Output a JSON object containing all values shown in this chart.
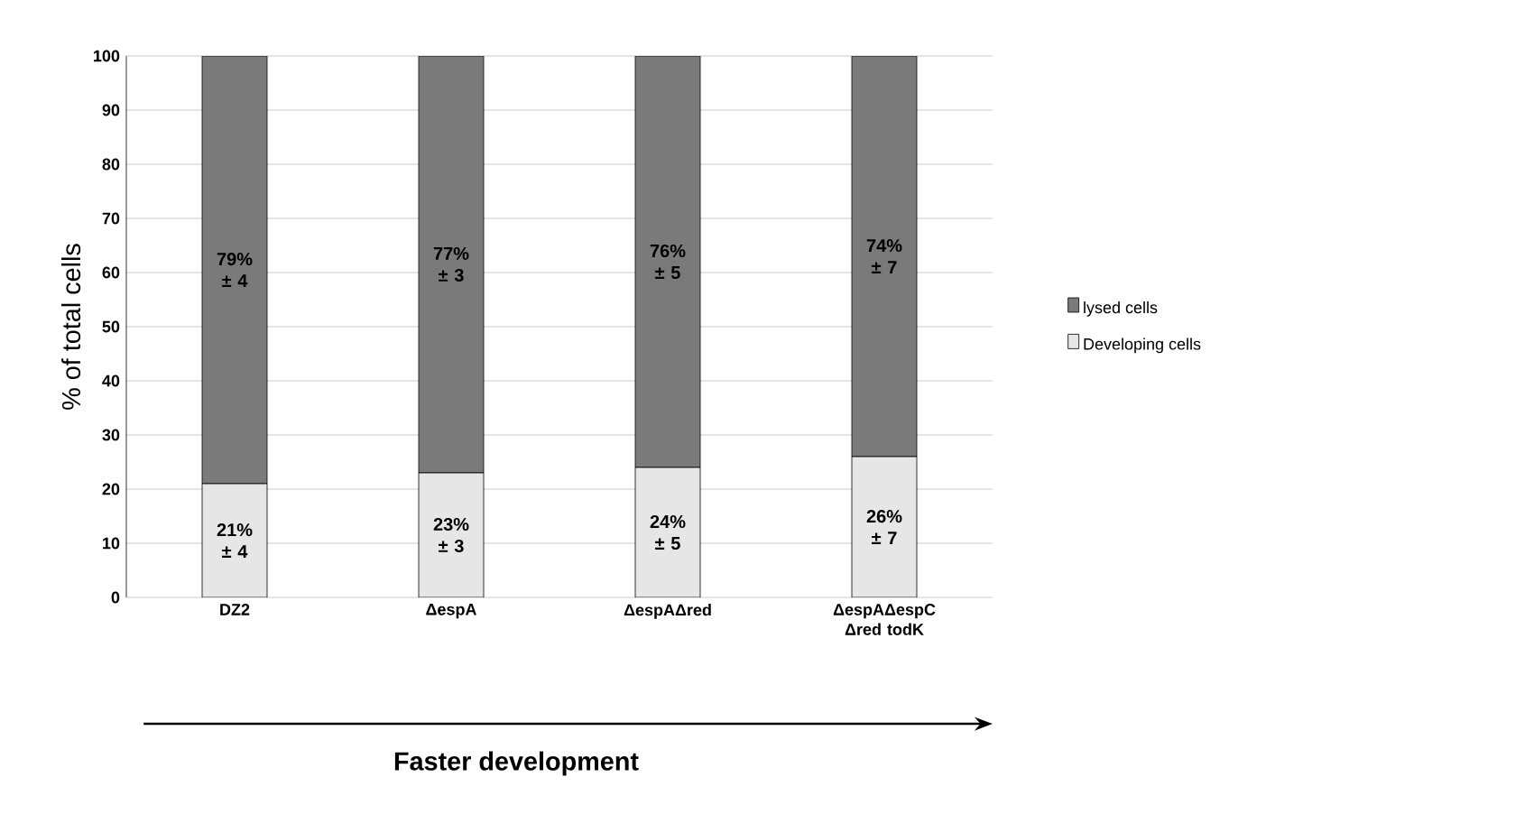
{
  "chart_data": {
    "type": "bar",
    "stacked": true,
    "ylabel": "% of total cells",
    "categories": [
      "DZ2",
      "ΔespA",
      "ΔespAΔred",
      "ΔespAΔespC Δred todK"
    ],
    "series": [
      {
        "name": "Developing cells",
        "color": "#e6e6e6",
        "values": [
          21,
          23,
          24,
          26
        ],
        "value_labels": [
          "21% ± 4",
          "23% ± 3",
          "24% ± 5",
          "26% ± 7"
        ]
      },
      {
        "name": "lysed cells",
        "color": "#7a7a7a",
        "values": [
          79,
          77,
          76,
          74
        ],
        "value_labels": [
          "79% ± 4",
          "77% ± 3",
          "76% ± 5",
          "74% ± 7"
        ]
      }
    ],
    "ylim": [
      0,
      100
    ],
    "yticks": [
      0,
      10,
      20,
      30,
      40,
      50,
      60,
      70,
      80,
      90,
      100
    ],
    "grid": "y",
    "legend": "right",
    "annotations": [
      "Faster development"
    ]
  }
}
